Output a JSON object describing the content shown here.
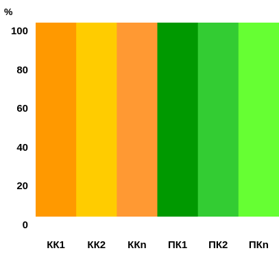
{
  "chart_data": {
    "type": "bar",
    "ylabel": "%",
    "ylim": [
      0,
      100
    ],
    "yticks": [
      0,
      20,
      40,
      60,
      80,
      100
    ],
    "categories": [
      "КК1",
      "КК2",
      "ККn",
      "ПК1",
      "ПК2",
      "ПКn"
    ],
    "values": [
      100,
      100,
      100,
      100,
      100,
      100
    ],
    "colors": [
      "#FF9900",
      "#FFCC00",
      "#FF9933",
      "#009900",
      "#33CC33",
      "#66FF33"
    ],
    "grid": false,
    "legend": "none"
  }
}
